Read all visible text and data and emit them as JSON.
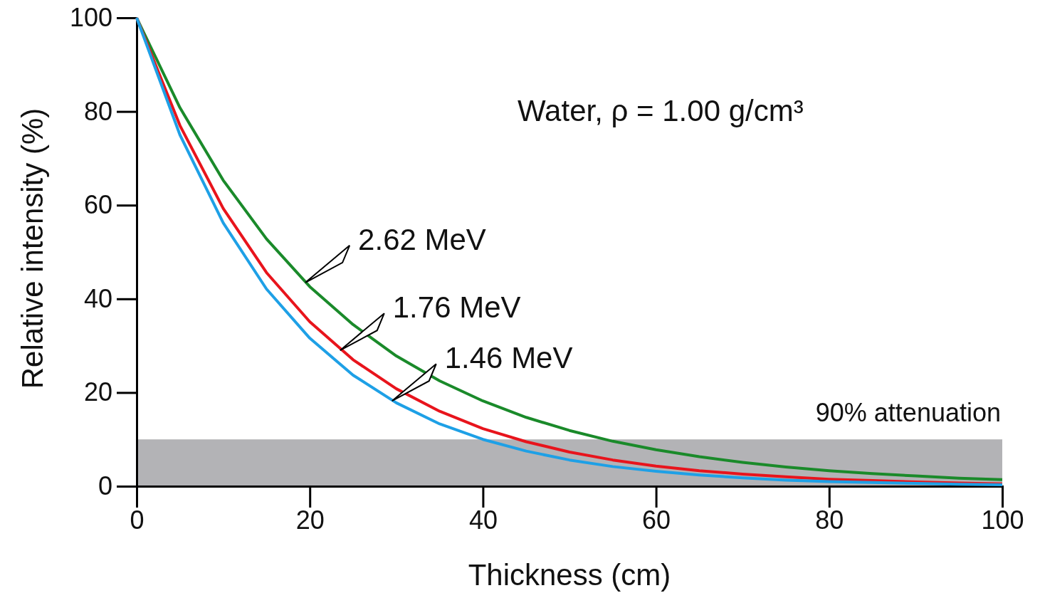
{
  "chart_data": {
    "type": "line",
    "title": "Water, ρ = 1.00 g/cm³",
    "xlabel": "Thickness (cm)",
    "ylabel": "Relative intensity (%)",
    "x": [
      0,
      5,
      10,
      15,
      20,
      25,
      30,
      35,
      40,
      45,
      50,
      55,
      60,
      65,
      70,
      75,
      80,
      85,
      90,
      95,
      100
    ],
    "series": [
      {
        "color": "#1a8a2a",
        "values": [
          100,
          80.8,
          65.3,
          52.8,
          42.6,
          34.5,
          27.8,
          22.5,
          18.2,
          14.7,
          11.9,
          9.6,
          7.8,
          6.3,
          5.1,
          4.1,
          3.3,
          2.7,
          2.2,
          1.7,
          1.4
        ]
      },
      {
        "color": "#e8141c",
        "values": [
          100,
          77,
          59.3,
          45.6,
          35.1,
          27,
          20.8,
          16,
          12.3,
          9.5,
          7.3,
          5.6,
          4.3,
          3.3,
          2.6,
          2,
          1.5,
          1.2,
          0.9,
          0.7,
          0.5
        ]
      },
      {
        "color": "#1ea0e6",
        "values": [
          100,
          75,
          56.2,
          42.1,
          31.6,
          23.7,
          17.8,
          13.3,
          10,
          7.5,
          5.6,
          4.2,
          3.2,
          2.4,
          1.8,
          1.3,
          1,
          0.8,
          0.6,
          0.4,
          0.3
        ]
      }
    ],
    "annotations": [
      {
        "text": "2.62 MeV",
        "x": 19.5,
        "y": 43.5
      },
      {
        "text": "1.76 MeV",
        "x": 23.5,
        "y": 29
      },
      {
        "text": "1.46 MeV",
        "x": 29.5,
        "y": 18.2
      }
    ],
    "bands": [
      {
        "axis": "y",
        "from": 0,
        "to": 10,
        "label": "90% attenuation",
        "color": "#b3b3b6"
      }
    ],
    "xlim": [
      0,
      100
    ],
    "ylim": [
      0,
      100
    ],
    "xticks": [
      0,
      20,
      40,
      60,
      80,
      100
    ],
    "yticks": [
      0,
      20,
      40,
      60,
      80,
      100
    ],
    "marker": "none",
    "line_style": "solid"
  }
}
